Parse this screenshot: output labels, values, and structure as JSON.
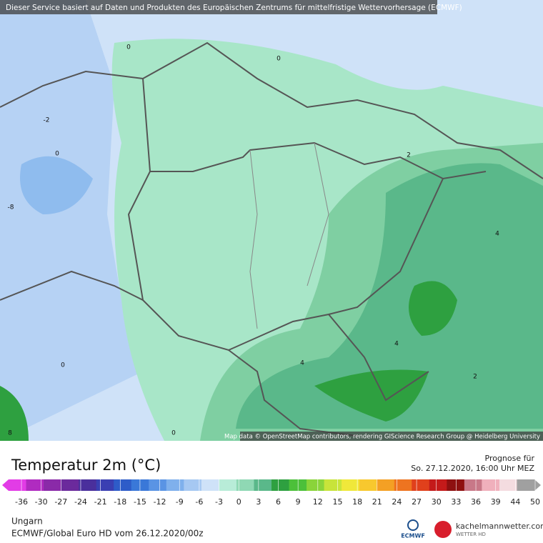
{
  "banner": "Dieser Service basiert auf Daten und Produkten des Europäischen Zentrums für mittelfristige Wettervorhersage (ECMWF)",
  "map": {
    "contour_labels": [
      "0",
      "0",
      "-2",
      "0",
      "-8",
      "2",
      "4",
      "4",
      "4",
      "2",
      "0",
      "0",
      "8"
    ],
    "attribution": "Map data © OpenStreetMap contributors, rendering GIScience Research Group @ Heidelberg University"
  },
  "legend": {
    "title": "Temperatur 2m (°C)",
    "forecast_label": "Prognose für",
    "forecast_time": "So. 27.12.2020, 16:00 Uhr MEZ",
    "ticks": [
      -36,
      -30,
      -27,
      -24,
      -21,
      -18,
      -15,
      -12,
      -9,
      -6,
      -3,
      0,
      3,
      6,
      9,
      12,
      15,
      18,
      21,
      24,
      27,
      30,
      33,
      36,
      39,
      44,
      50
    ],
    "colors": [
      "#e23ce6",
      "#b02bc0",
      "#8a2aa8",
      "#6b2a9c",
      "#4a2f9c",
      "#3a3fb2",
      "#2e5cc8",
      "#3a78d8",
      "#5a94e4",
      "#7fb0ec",
      "#a6c8f2",
      "#cfe2f8",
      "#b8ecd8",
      "#8fd8b4",
      "#5ab88a",
      "#2ea040",
      "#4cc03a",
      "#8ad43a",
      "#c8e43a",
      "#f0e83a",
      "#f8c82e",
      "#f4a024",
      "#ee7420",
      "#e0401c",
      "#c41a1a",
      "#8e1010",
      "#c87888",
      "#f0b0bc",
      "#f4dce0",
      "#a0a0a0"
    ]
  },
  "footer": {
    "region": "Ungarn",
    "model": "ECMWF/Global Euro HD vom  26.12.2020/00z",
    "ecmwf_logo": "ECMWF",
    "site": "kachelmannwetter.com",
    "site_tag": "WETTER HD"
  }
}
